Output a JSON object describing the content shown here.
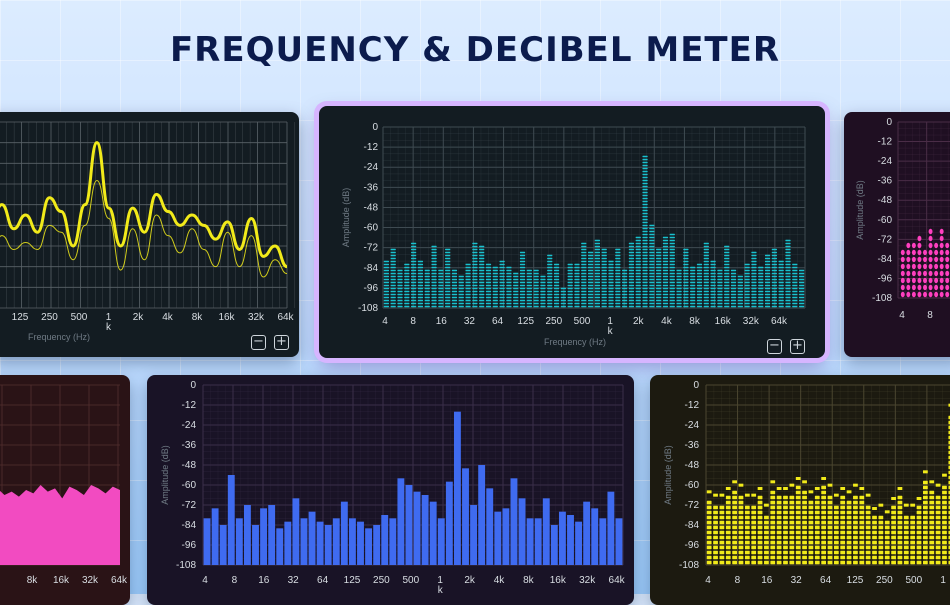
{
  "title": "FREQUENCY & DECIBEL METER",
  "x_ticks": [
    "4",
    "8",
    "16",
    "32",
    "64",
    "125",
    "250",
    "500",
    "1",
    "2k",
    "4k",
    "8k",
    "16k",
    "32k",
    "64k"
  ],
  "x_tick_subscript": "k",
  "y_ticks": [
    "0",
    "-12",
    "-24",
    "-36",
    "-48",
    "-60",
    "-72",
    "-84",
    "-96",
    "-108"
  ],
  "y_axis_label": "Amplitude (dB)",
  "x_axis_label": "Frequency (Hz)",
  "zoom_out_label": "−",
  "zoom_in_label": "+",
  "colors": {
    "cyan": "#19c2cf",
    "blue": "#3f6bf0",
    "yellow": "#f1ea1a",
    "pink": "#f24bc1",
    "magenta_pink": "#ff3fbf"
  },
  "chart_data": [
    {
      "type": "line",
      "name": "left-curve-chart",
      "xlabel": "Frequency (Hz)",
      "x_visible_ticks": [
        "125",
        "250",
        "500",
        "1",
        "2k",
        "4k",
        "8k",
        "16k",
        "32k",
        "64k"
      ],
      "ylim": [
        -108,
        0
      ],
      "series": [
        {
          "values": [
            -60,
            -48,
            -62,
            -54,
            -64,
            -44,
            -52,
            -72,
            -48,
            -12,
            -50,
            -72,
            -50,
            -64,
            -42,
            -52,
            -60,
            -54,
            -60,
            -68,
            -58,
            -74,
            -56,
            -78,
            -72,
            -84
          ]
        },
        {
          "values": [
            -78,
            -66,
            -74,
            -70,
            -74,
            -60,
            -64,
            -80,
            -60,
            -34,
            -56,
            -86,
            -62,
            -80,
            -54,
            -66,
            -76,
            -62,
            -74,
            -84,
            -64,
            -84,
            -66,
            -90,
            -80,
            -88
          ]
        }
      ]
    },
    {
      "type": "bar",
      "name": "center-cyan-chart",
      "ylabel": "Amplitude (dB)",
      "xlabel": "Frequency (Hz)",
      "ylim": [
        -108,
        0
      ],
      "values": [
        -78,
        -72,
        -85,
        -80,
        -68,
        -78,
        -84,
        -70,
        -84,
        -72,
        -84,
        -88,
        -80,
        -68,
        -70,
        -80,
        -82,
        -78,
        -82,
        -86,
        -74,
        -84,
        -84,
        -88,
        -76,
        -80,
        -94,
        -80,
        -80,
        -68,
        -74,
        -66,
        -72,
        -78,
        -72,
        -84,
        -68,
        -64,
        -16,
        -58,
        -72,
        -64,
        -62,
        -84,
        -72,
        -82,
        -80,
        -68,
        -78,
        -84,
        -70,
        -84,
        -88,
        -80,
        -74,
        -82,
        -76,
        -72,
        -78,
        -66,
        -80,
        -84
      ]
    },
    {
      "type": "bar",
      "name": "right-pink-chart",
      "ylabel": "Amplitude (dB)",
      "ylim": [
        -108,
        0
      ],
      "x_visible_ticks": [
        "4",
        "8"
      ],
      "values": [
        -78,
        -72,
        -70,
        -66,
        -74,
        -62,
        -70,
        -64,
        -70
      ]
    },
    {
      "type": "area",
      "name": "bottom-left-pink-chart",
      "x_visible_ticks": [
        "8k",
        "16k",
        "32k",
        "64k"
      ],
      "ylim": [
        -108,
        0
      ],
      "values": [
        -60,
        -62,
        -66,
        -64,
        -67,
        -63,
        -65,
        -60,
        -64,
        -62,
        -68,
        -61,
        -63,
        -66,
        -60,
        -62,
        -65,
        -61,
        -63
      ]
    },
    {
      "type": "bar",
      "name": "bottom-center-blue-chart",
      "ylabel": "Amplitude (dB)",
      "ylim": [
        -108,
        0
      ],
      "values": [
        -80,
        -74,
        -84,
        -54,
        -80,
        -72,
        -84,
        -74,
        -72,
        -86,
        -82,
        -68,
        -80,
        -76,
        -82,
        -84,
        -80,
        -70,
        -80,
        -82,
        -86,
        -84,
        -78,
        -80,
        -56,
        -60,
        -64,
        -66,
        -70,
        -80,
        -58,
        -16,
        -50,
        -72,
        -48,
        -62,
        -76,
        -74,
        -56,
        -68,
        -80,
        -80,
        -68,
        -84,
        -76,
        -78,
        -82,
        -70,
        -74,
        -80,
        -64,
        -80
      ]
    },
    {
      "type": "bar",
      "name": "bottom-right-yellow-chart",
      "ylabel": "Amplitude (dB)",
      "ylim": [
        -108,
        0
      ],
      "values": [
        -68,
        -70,
        -70,
        -66,
        -62,
        -64,
        -70,
        -70,
        -66,
        -76,
        -62,
        -66,
        -66,
        -64,
        -60,
        -62,
        -68,
        -66,
        -60,
        -64,
        -70,
        -66,
        -68,
        -64,
        -66,
        -70,
        -78,
        -76,
        -80,
        -72,
        -66,
        -76,
        -76,
        -72,
        -56,
        -62,
        -64,
        -58,
        -16
      ]
    }
  ]
}
